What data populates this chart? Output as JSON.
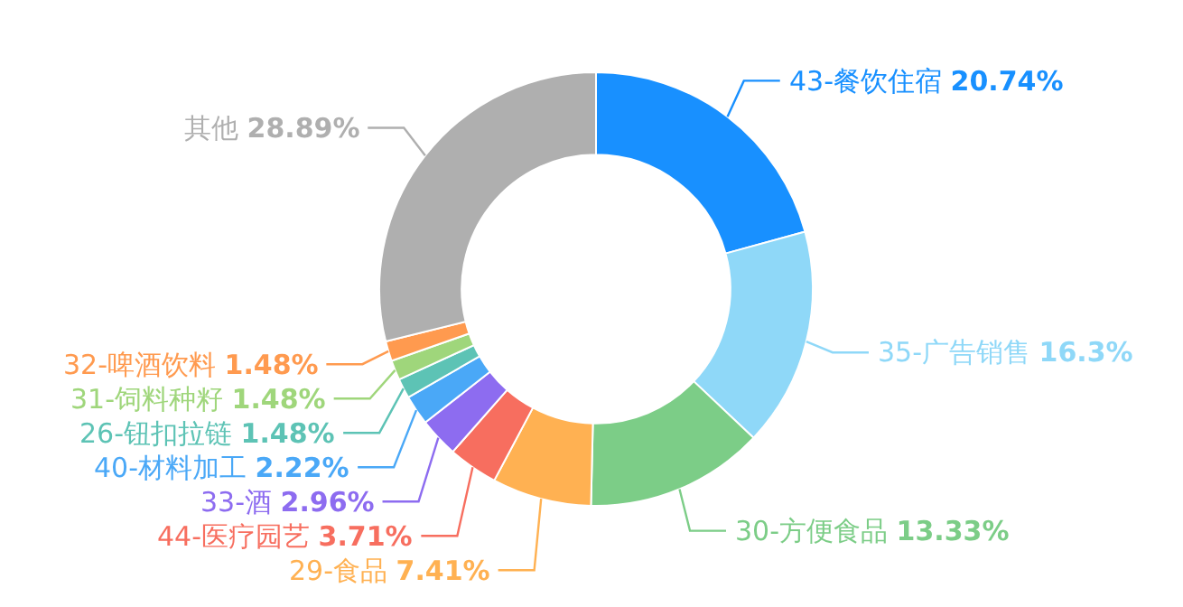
{
  "chart_data": {
    "type": "donut",
    "categories": [
      "43-餐饮住宿",
      "35-广告销售",
      "30-方便食品",
      "29-食品",
      "44-医疗园艺",
      "33-酒",
      "40-材料加工",
      "26-钮扣拉链",
      "31-饲料种籽",
      "32-啤酒饮料",
      "其他"
    ],
    "values": [
      20.74,
      16.3,
      13.33,
      7.41,
      3.71,
      2.96,
      2.22,
      1.48,
      1.48,
      1.48,
      28.89
    ],
    "value_labels": [
      "20.74%",
      "16.3%",
      "13.33%",
      "7.41%",
      "3.71%",
      "2.96%",
      "2.22%",
      "1.48%",
      "1.48%",
      "1.48%",
      "28.89%"
    ],
    "colors": [
      "#1890ff",
      "#8fd8f8",
      "#7ccd87",
      "#ffb152",
      "#f76e5f",
      "#8d6cf0",
      "#4aa8f7",
      "#5dc3b5",
      "#9fd67b",
      "#ff9a4f",
      "#afafaf"
    ],
    "legend": false
  }
}
